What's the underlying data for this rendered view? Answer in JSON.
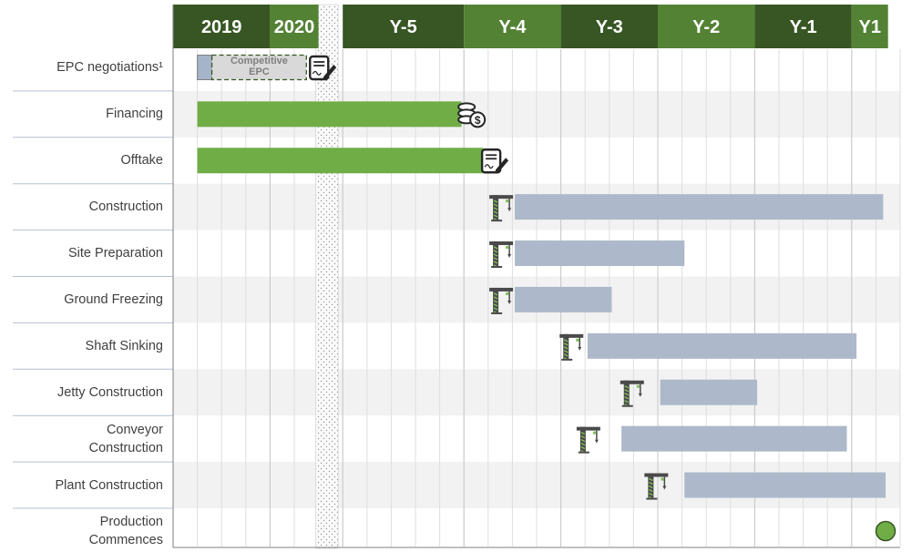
{
  "chart_data": {
    "type": "gantt",
    "timeline_unit": "month",
    "periods": [
      {
        "label": "2019",
        "start": 0,
        "months": 4,
        "color": "#375623"
      },
      {
        "label": "2020",
        "start": 4,
        "months": 2,
        "color": "#548235"
      },
      {
        "label": "",
        "start": 6,
        "months": 1,
        "color": "#ffffff",
        "gap": true
      },
      {
        "label": "Y-5",
        "start": 7,
        "months": 5,
        "color": "#375623"
      },
      {
        "label": "Y-4",
        "start": 12,
        "months": 4,
        "color": "#548235"
      },
      {
        "label": "Y-3",
        "start": 16,
        "months": 4,
        "color": "#375623"
      },
      {
        "label": "Y-2",
        "start": 20,
        "months": 4,
        "color": "#548235"
      },
      {
        "label": "Y-1",
        "start": 24,
        "months": 4,
        "color": "#375623"
      },
      {
        "label": "Y1",
        "start": 28,
        "months": 1.5,
        "color": "#548235"
      }
    ],
    "rows": [
      {
        "label": "EPC negotiations¹",
        "shaded": false,
        "bars": [
          {
            "start": 1,
            "end": 1.6,
            "color": "#a6b4c9",
            "style": "solid"
          },
          {
            "start": 1.6,
            "end": 5.5,
            "color": "#d9d9d9",
            "style": "dashed",
            "text": [
              "Competitive",
              "EPC"
            ]
          }
        ],
        "icons": [
          {
            "type": "contract",
            "at": 6.1
          }
        ]
      },
      {
        "label": "Financing",
        "shaded": true,
        "bars": [
          {
            "start": 1,
            "end": 11.9,
            "color": "#70ad47"
          }
        ],
        "icons": [
          {
            "type": "coins",
            "at": 12.3
          }
        ]
      },
      {
        "label": "Offtake",
        "shaded": false,
        "bars": [
          {
            "start": 1,
            "end": 12.8,
            "color": "#70ad47"
          }
        ],
        "icons": [
          {
            "type": "contract",
            "at": 13.2
          }
        ]
      },
      {
        "label": "Construction",
        "shaded": true,
        "bars": [
          {
            "start": 14.1,
            "end": 29.3,
            "color": "#adb9ca"
          }
        ],
        "icons": [
          {
            "type": "crane",
            "at": 13.5
          }
        ]
      },
      {
        "label": "Site Preparation",
        "shaded": false,
        "bars": [
          {
            "start": 14.1,
            "end": 21.1,
            "color": "#adb9ca"
          }
        ],
        "icons": [
          {
            "type": "crane",
            "at": 13.5
          }
        ]
      },
      {
        "label": "Ground Freezing",
        "shaded": true,
        "bars": [
          {
            "start": 14.1,
            "end": 18.1,
            "color": "#adb9ca"
          }
        ],
        "icons": [
          {
            "type": "crane",
            "at": 13.5
          }
        ]
      },
      {
        "label": "Shaft Sinking",
        "shaded": false,
        "bars": [
          {
            "start": 17.1,
            "end": 28.2,
            "color": "#adb9ca"
          }
        ],
        "icons": [
          {
            "type": "crane",
            "at": 16.4
          }
        ]
      },
      {
        "label": "Jetty Construction",
        "shaded": true,
        "bars": [
          {
            "start": 20.1,
            "end": 24.1,
            "color": "#adb9ca"
          }
        ],
        "icons": [
          {
            "type": "crane",
            "at": 18.9
          }
        ]
      },
      {
        "label": [
          "Conveyor",
          "Construction"
        ],
        "shaded": false,
        "bars": [
          {
            "start": 18.5,
            "end": 27.8,
            "color": "#adb9ca"
          }
        ],
        "icons": [
          {
            "type": "crane",
            "at": 17.1
          }
        ]
      },
      {
        "label": "Plant Construction",
        "shaded": true,
        "bars": [
          {
            "start": 21.1,
            "end": 29.4,
            "color": "#adb9ca"
          }
        ],
        "icons": [
          {
            "type": "crane",
            "at": 19.9
          }
        ]
      },
      {
        "label": [
          "Production",
          "Commences"
        ],
        "shaded": false,
        "bars": [],
        "icons": [
          {
            "type": "milestone",
            "at": 29.5,
            "color": "#70ad47"
          }
        ]
      }
    ]
  }
}
